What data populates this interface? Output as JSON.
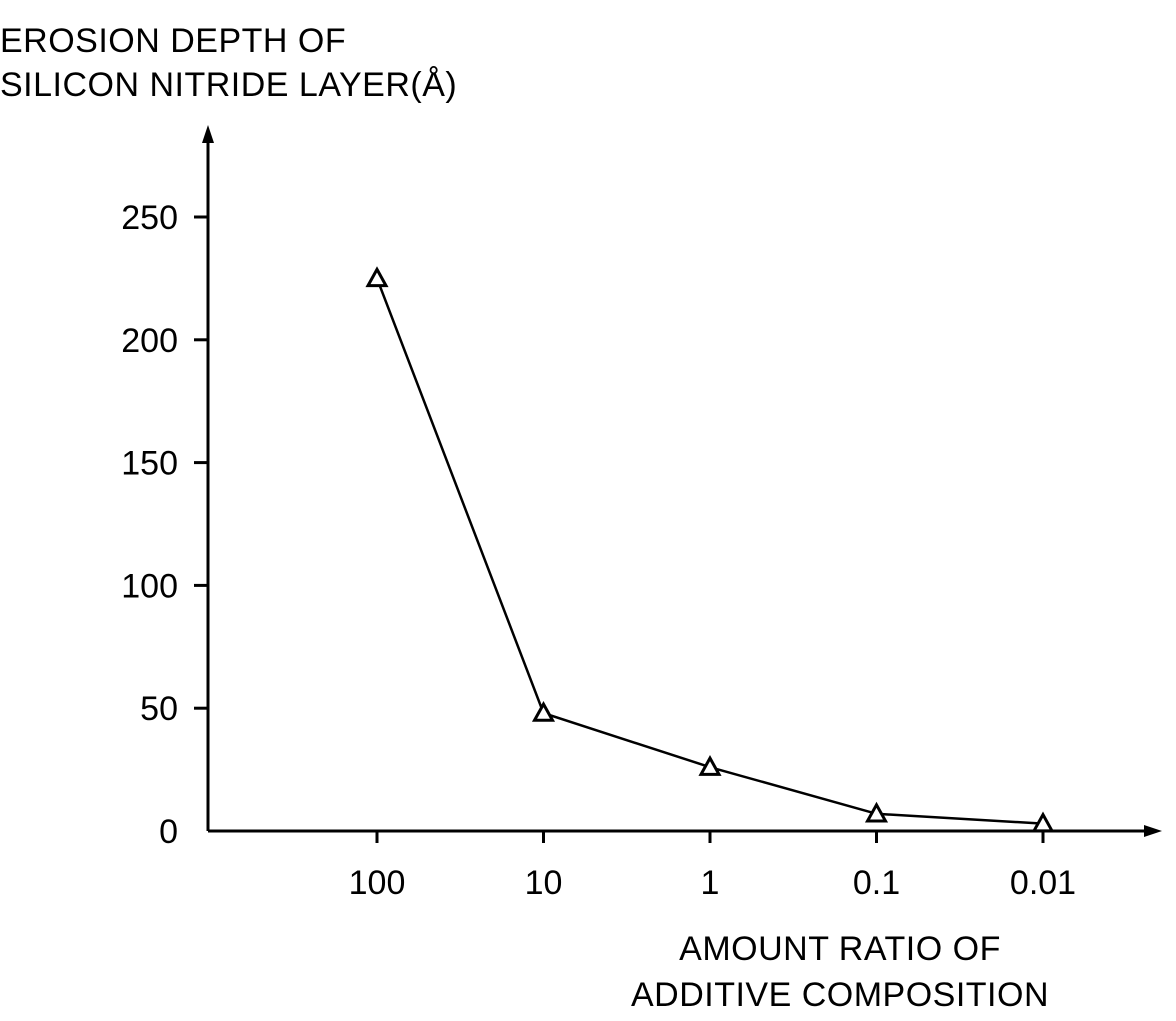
{
  "chart_data": {
    "type": "line",
    "ylabel_lines": [
      "EROSION DEPTH OF",
      "SILICON NITRIDE LAYER(Å)"
    ],
    "xlabel_lines": [
      "AMOUNT RATIO OF",
      "ADDITIVE COMPOSITION"
    ],
    "categories": [
      "100",
      "10",
      "1",
      "0.1",
      "0.01"
    ],
    "values": [
      225,
      48,
      26,
      7,
      3
    ],
    "yticks": [
      0,
      50,
      100,
      150,
      200,
      250
    ],
    "ylim": [
      0,
      250
    ],
    "grid": false,
    "marker": "open-triangle",
    "legend": "none"
  }
}
